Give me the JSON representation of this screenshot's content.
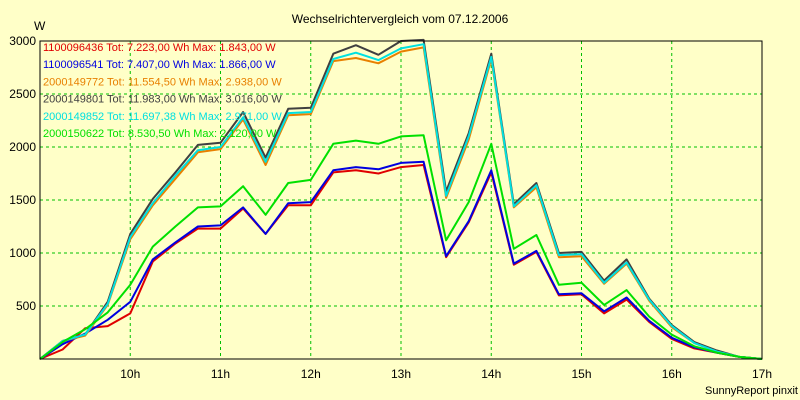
{
  "chart_data": {
    "type": "line",
    "title": "Wechselrichtervergleich vom 07.12.2006",
    "ylabel": "W",
    "ylim": [
      0,
      3000
    ],
    "xlim": [
      9.0,
      17.0
    ],
    "yticks": [
      "500",
      "1000",
      "1500",
      "2000",
      "2500",
      "3000"
    ],
    "xticks": [
      "10h",
      "11h",
      "12h",
      "13h",
      "14h",
      "15h",
      "16h",
      "17h"
    ],
    "grid": true,
    "legend_placement": "top-left",
    "x": [
      9.0,
      9.25,
      9.5,
      9.75,
      10.0,
      10.25,
      10.5,
      10.75,
      11.0,
      11.25,
      11.5,
      11.75,
      12.0,
      12.25,
      12.5,
      12.75,
      13.0,
      13.25,
      13.5,
      13.75,
      14.0,
      14.25,
      14.5,
      14.75,
      15.0,
      15.25,
      15.5,
      15.75,
      16.0,
      16.25,
      16.5,
      16.75,
      17.0
    ],
    "series": [
      {
        "name": "1100096436 Tot: 7.223,00 Wh Max: 1.843,00 W",
        "color": "#e00000",
        "values": [
          0,
          90,
          290,
          310,
          430,
          920,
          1090,
          1230,
          1230,
          1420,
          1180,
          1450,
          1450,
          1760,
          1780,
          1750,
          1810,
          1830,
          960,
          1290,
          1760,
          890,
          1010,
          600,
          610,
          430,
          560,
          350,
          190,
          100,
          60,
          20,
          0
        ]
      },
      {
        "name": "1100096541 Tot: 7.407,00 Wh Max: 1.866,00 W",
        "color": "#0000e0",
        "values": [
          0,
          140,
          240,
          370,
          540,
          940,
          1100,
          1250,
          1260,
          1430,
          1180,
          1470,
          1480,
          1780,
          1810,
          1790,
          1850,
          1860,
          970,
          1300,
          1780,
          900,
          1020,
          610,
          620,
          450,
          580,
          360,
          200,
          110,
          60,
          20,
          0
        ]
      },
      {
        "name": "2000149772 Tot: 11.554,50 Wh Max: 2.938,00 W",
        "color": "#e88000",
        "values": [
          0,
          170,
          220,
          510,
          1130,
          1450,
          1700,
          1950,
          1980,
          2260,
          1830,
          2300,
          2310,
          2810,
          2840,
          2790,
          2900,
          2940,
          1520,
          2070,
          2830,
          1430,
          1620,
          960,
          970,
          710,
          900,
          550,
          300,
          150,
          70,
          20,
          0
        ]
      },
      {
        "name": "2000149801 Tot: 11.983,00 Wh Max: 3.016,00 W",
        "color": "#404040",
        "values": [
          0,
          170,
          230,
          540,
          1180,
          1510,
          1760,
          2020,
          2040,
          2330,
          1900,
          2360,
          2370,
          2880,
          2960,
          2870,
          3000,
          3010,
          1580,
          2130,
          2880,
          1460,
          1660,
          1000,
          1010,
          740,
          940,
          570,
          320,
          160,
          80,
          20,
          0
        ]
      },
      {
        "name": "2000149852 Tot: 11.697,38 Wh Max: 2.971,00 W",
        "color": "#00e0e0",
        "values": [
          0,
          170,
          230,
          520,
          1150,
          1470,
          1730,
          1970,
          2000,
          2280,
          1860,
          2320,
          2330,
          2830,
          2890,
          2820,
          2930,
          2970,
          1540,
          2100,
          2850,
          1440,
          1640,
          980,
          990,
          720,
          910,
          560,
          310,
          150,
          70,
          20,
          0
        ]
      },
      {
        "name": "2000150622 Tot: 8.530,50 Wh Max: 2.120,00 W",
        "color": "#00e000",
        "values": [
          0,
          160,
          280,
          440,
          700,
          1060,
          1250,
          1430,
          1440,
          1630,
          1360,
          1660,
          1690,
          2030,
          2060,
          2030,
          2100,
          2110,
          1120,
          1480,
          2030,
          1040,
          1170,
          700,
          720,
          510,
          650,
          400,
          230,
          120,
          60,
          20,
          0
        ]
      }
    ]
  },
  "footer": "SunnyReport pinxit"
}
